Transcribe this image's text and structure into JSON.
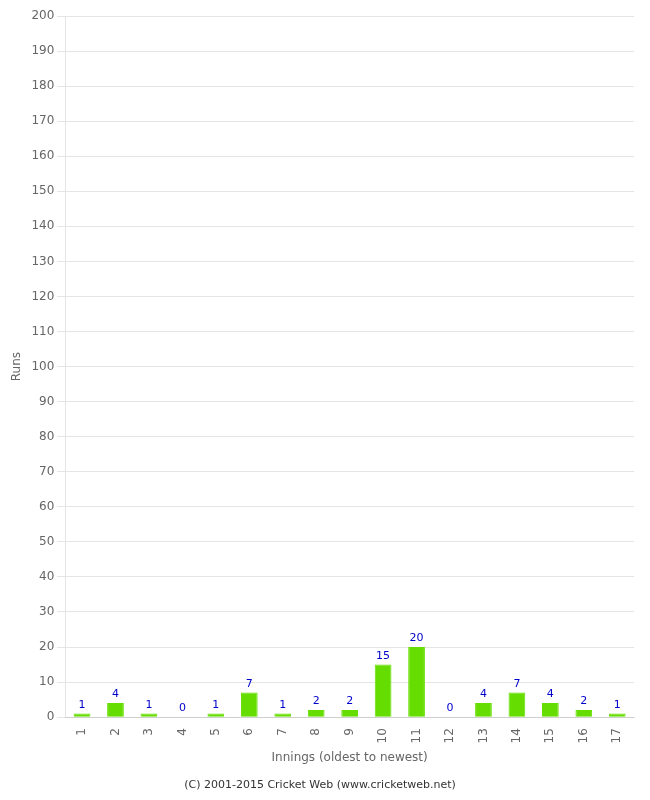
{
  "chart_data": {
    "type": "bar",
    "categories": [
      "1",
      "2",
      "3",
      "4",
      "5",
      "6",
      "7",
      "8",
      "9",
      "10",
      "11",
      "12",
      "13",
      "14",
      "15",
      "16",
      "17"
    ],
    "values": [
      1,
      4,
      1,
      0,
      1,
      7,
      1,
      2,
      2,
      15,
      20,
      0,
      4,
      7,
      4,
      2,
      1
    ],
    "color": "#66dd00",
    "xlabel": "Innings (oldest to newest)",
    "ylabel": "Runs",
    "ylim": [
      0,
      200
    ],
    "yticks": [
      0,
      10,
      20,
      30,
      40,
      50,
      60,
      70,
      80,
      90,
      100,
      110,
      120,
      130,
      140,
      150,
      160,
      170,
      180,
      190,
      200
    ],
    "grid": true,
    "data_labels": true,
    "annotations": [
      "(C) 2001-2015 Cricket Web (www.cricketweb.net)"
    ]
  }
}
